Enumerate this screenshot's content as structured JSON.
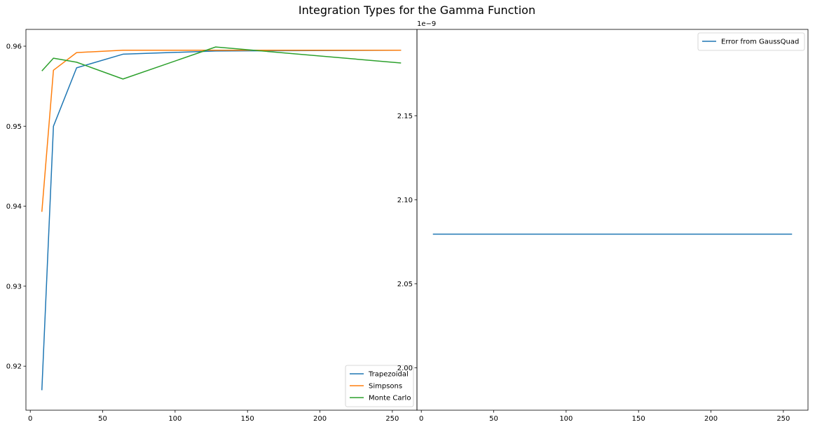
{
  "title": "Integration Types for the Gamma Function",
  "chart_data": [
    {
      "type": "line",
      "title": "",
      "xlabel": "",
      "ylabel": "",
      "xlim": [
        -3,
        267
      ],
      "ylim": [
        0.9145,
        0.9621
      ],
      "x_ticks": [
        0,
        50,
        100,
        150,
        200,
        250
      ],
      "y_ticks": [
        0.92,
        0.93,
        0.94,
        0.95,
        0.96
      ],
      "y_tick_labels": [
        "0.92",
        "0.93",
        "0.94",
        "0.95",
        "0.96"
      ],
      "grid": false,
      "legend_position": "lower-right",
      "series": [
        {
          "name": "Trapezoidal",
          "color": "#1f77b4",
          "x": [
            8,
            16,
            32,
            64,
            128,
            256
          ],
          "y": [
            0.917,
            0.95,
            0.9573,
            0.959,
            0.9594,
            0.9595
          ]
        },
        {
          "name": "Simpsons",
          "color": "#ff7f0e",
          "x": [
            8,
            16,
            32,
            64,
            128,
            256
          ],
          "y": [
            0.9393,
            0.957,
            0.9592,
            0.9595,
            0.9595,
            0.9595
          ]
        },
        {
          "name": "Monte Carlo",
          "color": "#2ca02c",
          "x": [
            8,
            16,
            32,
            64,
            128,
            256
          ],
          "y": [
            0.9569,
            0.9585,
            0.958,
            0.9559,
            0.9599,
            0.9579
          ]
        }
      ]
    },
    {
      "type": "line",
      "title": "",
      "xlabel": "",
      "ylabel": "",
      "xlim": [
        -3,
        267
      ],
      "ylim": [
        1.9747e-09,
        2.2014e-09
      ],
      "x_ticks": [
        0,
        50,
        100,
        150,
        200,
        250
      ],
      "y_ticks": [
        2e-09,
        2.05e-09,
        2.1e-09,
        2.15e-09
      ],
      "y_tick_labels": [
        "2.00",
        "2.05",
        "2.10",
        "2.15"
      ],
      "y_offset_label": "1e−9",
      "grid": false,
      "legend_position": "upper-right",
      "series": [
        {
          "name": "Error from GaussQuad",
          "color": "#1f77b4",
          "x": [
            8,
            256
          ],
          "y": [
            2.0795e-09,
            2.0795e-09
          ]
        }
      ]
    }
  ]
}
